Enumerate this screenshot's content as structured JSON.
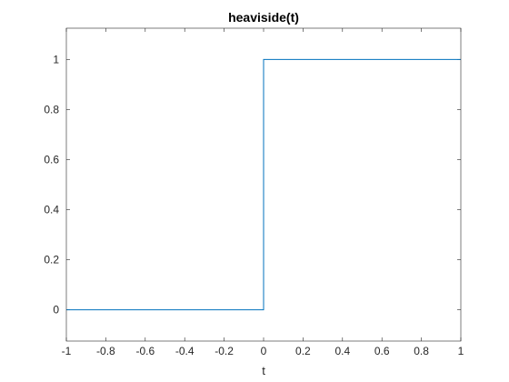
{
  "chart_data": {
    "type": "line",
    "title": "heaviside(t)",
    "xlabel": "t",
    "ylabel": "",
    "xlim": [
      -1,
      1
    ],
    "ylim": [
      -0.125,
      1.125
    ],
    "xticks": [
      -1,
      -0.8,
      -0.6,
      -0.4,
      -0.2,
      0,
      0.2,
      0.4,
      0.6,
      0.8,
      1
    ],
    "xtick_labels": [
      "-1",
      "-0.8",
      "-0.6",
      "-0.4",
      "-0.2",
      "0",
      "0.2",
      "0.4",
      "0.6",
      "0.8",
      "1"
    ],
    "yticks": [
      0,
      0.2,
      0.4,
      0.6,
      0.8,
      1
    ],
    "ytick_labels": [
      "0",
      "0.2",
      "0.4",
      "0.6",
      "0.8",
      "1"
    ],
    "grid": false,
    "box": true,
    "series": [
      {
        "color": "#0072BD",
        "x": [
          -1,
          0,
          0,
          1
        ],
        "y": [
          0,
          0,
          1,
          1
        ]
      }
    ]
  }
}
